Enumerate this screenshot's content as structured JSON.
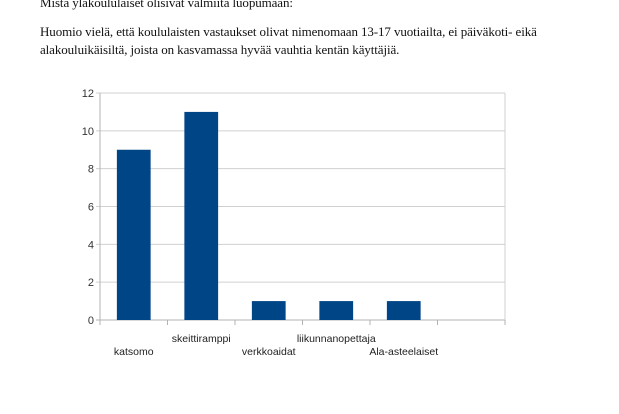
{
  "document": {
    "heading": "Mistä yläkoululaiset olisivat valmiita luopumaan:",
    "paragraph_lines": [
      "Huomio vielä, että koululaisten vastaukset olivat nimenomaan 13-17 vuotiailta, ei päiväkoti- eikä",
      "alakouluikäisiltä, joista on kasvamassa hyvää vauhtia kentän käyttäjiä."
    ]
  },
  "chart_data": {
    "type": "bar",
    "categories": [
      "katsomo",
      "skeittiramppi",
      "verkkoaidat",
      "liikunnanopettaja",
      "Ala-asteelaiset"
    ],
    "values": [
      9,
      11,
      1,
      1,
      1
    ],
    "ylim": [
      0,
      12
    ],
    "yticks": [
      0,
      2,
      4,
      6,
      8,
      10,
      12
    ],
    "grid": true,
    "legend": "none",
    "bar_color": "#004586"
  }
}
